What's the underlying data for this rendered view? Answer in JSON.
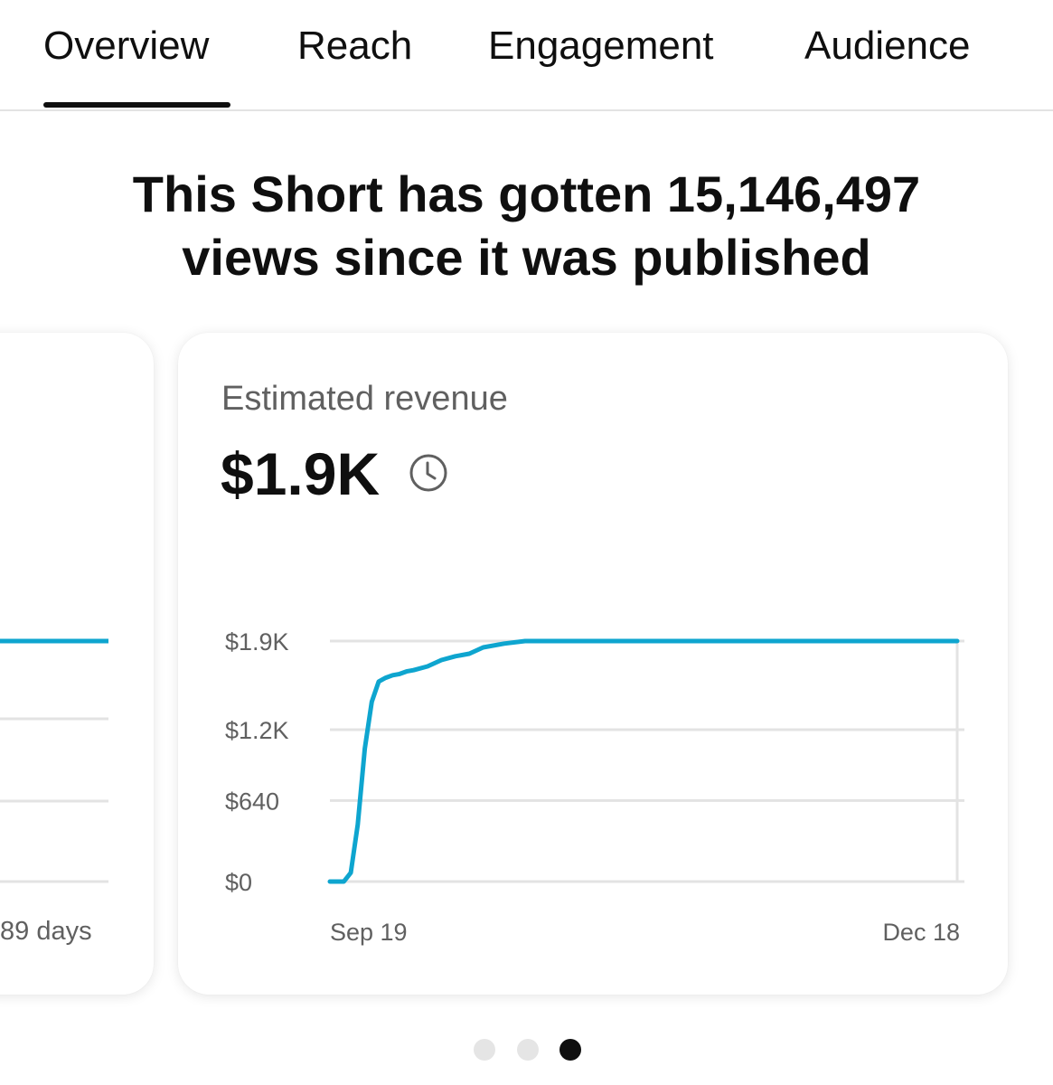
{
  "tabs": [
    {
      "label": "Overview",
      "active": true
    },
    {
      "label": "Reach"
    },
    {
      "label": "Engagement"
    },
    {
      "label": "Audience"
    }
  ],
  "headline": {
    "line1": "This Short has gotten 15,146,497",
    "line2": "views since it was published"
  },
  "left_card": {
    "xlabel_end": "89 days"
  },
  "revenue_card": {
    "title": "Estimated revenue",
    "value": "$1.9K",
    "info_icon": "clock-icon"
  },
  "colors": {
    "series": "#0ea5cf",
    "grid": "#e3e3e3",
    "text_secondary": "#606060"
  },
  "chart_data": {
    "type": "line",
    "title": "Estimated revenue",
    "ylabel": "",
    "xlabel": "",
    "ylim": [
      0,
      1900
    ],
    "yticks": [
      0,
      640,
      1200,
      1900
    ],
    "ytick_labels": [
      "$0",
      "$640",
      "$1.2K",
      "$1.9K"
    ],
    "x_start_label": "Sep 19",
    "x_end_label": "Dec 18",
    "xlim": [
      0,
      90
    ],
    "series": [
      {
        "name": "Estimated revenue",
        "x": [
          0,
          2,
          3,
          4,
          5,
          6,
          7,
          8,
          9,
          10,
          11,
          12,
          14,
          16,
          18,
          20,
          22,
          25,
          28,
          90
        ],
        "y": [
          0,
          0,
          70,
          450,
          1050,
          1420,
          1580,
          1610,
          1630,
          1640,
          1660,
          1670,
          1700,
          1750,
          1780,
          1800,
          1850,
          1880,
          1900,
          1900
        ]
      }
    ]
  },
  "pagination": {
    "count": 3,
    "active_index": 2
  }
}
